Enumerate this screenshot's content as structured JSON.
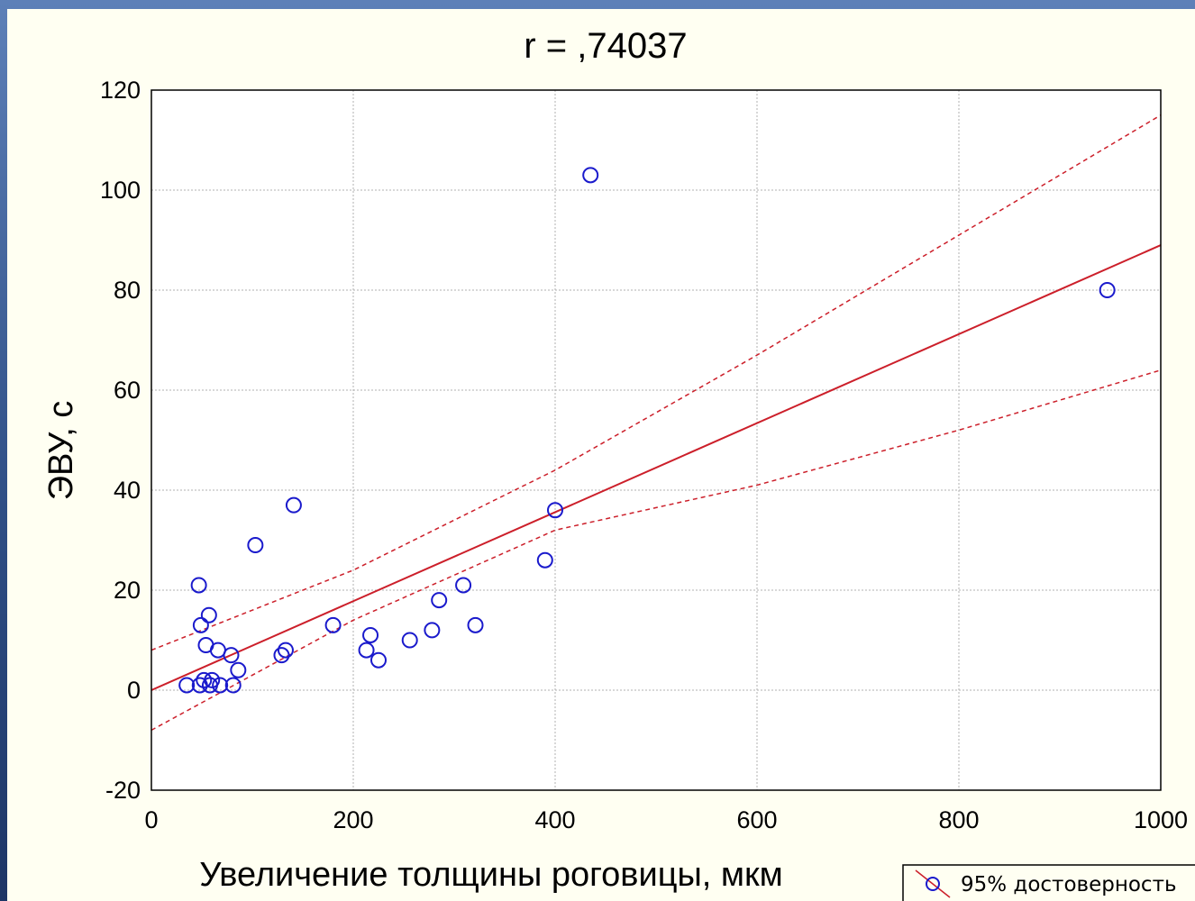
{
  "chart_data": {
    "type": "scatter",
    "title": "r = ,74037",
    "xlabel": "Увеличение толщины роговицы, мкм",
    "ylabel": "ЭВУ, с",
    "xlim": [
      0,
      1000
    ],
    "ylim": [
      -20,
      120
    ],
    "x_ticks": [
      "0",
      "200",
      "400",
      "600",
      "800",
      "1000"
    ],
    "y_ticks": [
      "-20",
      "0",
      "20",
      "40",
      "60",
      "80",
      "100",
      "120"
    ],
    "grid": true,
    "legend_position": "bottom-right",
    "legend": "95% достоверность",
    "points": [
      {
        "x": 35,
        "y": 1
      },
      {
        "x": 47,
        "y": 21
      },
      {
        "x": 48,
        "y": 1
      },
      {
        "x": 49,
        "y": 13
      },
      {
        "x": 52,
        "y": 2
      },
      {
        "x": 54,
        "y": 9
      },
      {
        "x": 57,
        "y": 15
      },
      {
        "x": 58,
        "y": 1
      },
      {
        "x": 60,
        "y": 2
      },
      {
        "x": 66,
        "y": 8
      },
      {
        "x": 68,
        "y": 1
      },
      {
        "x": 79,
        "y": 7
      },
      {
        "x": 81,
        "y": 1
      },
      {
        "x": 86,
        "y": 4
      },
      {
        "x": 103,
        "y": 29
      },
      {
        "x": 129,
        "y": 7
      },
      {
        "x": 133,
        "y": 8
      },
      {
        "x": 141,
        "y": 37
      },
      {
        "x": 180,
        "y": 13
      },
      {
        "x": 213,
        "y": 8
      },
      {
        "x": 217,
        "y": 11
      },
      {
        "x": 225,
        "y": 6
      },
      {
        "x": 256,
        "y": 10
      },
      {
        "x": 278,
        "y": 12
      },
      {
        "x": 285,
        "y": 18
      },
      {
        "x": 309,
        "y": 21
      },
      {
        "x": 321,
        "y": 13
      },
      {
        "x": 390,
        "y": 26
      },
      {
        "x": 400,
        "y": 36
      },
      {
        "x": 435,
        "y": 103
      },
      {
        "x": 947,
        "y": 80
      }
    ],
    "regression_line": {
      "x": [
        0,
        1000
      ],
      "y": [
        0,
        89
      ]
    },
    "confidence_upper": {
      "x": [
        0,
        200,
        400,
        600,
        800,
        1000
      ],
      "y": [
        8,
        24,
        44,
        67,
        91,
        115
      ]
    },
    "confidence_lower": {
      "x": [
        0,
        200,
        400,
        600,
        800,
        1000
      ],
      "y": [
        -8,
        14,
        32,
        41,
        52,
        64
      ]
    },
    "colors": {
      "points": "#1a1acc",
      "line": "#cc1f2a",
      "grid": "#b0b0b0"
    }
  }
}
